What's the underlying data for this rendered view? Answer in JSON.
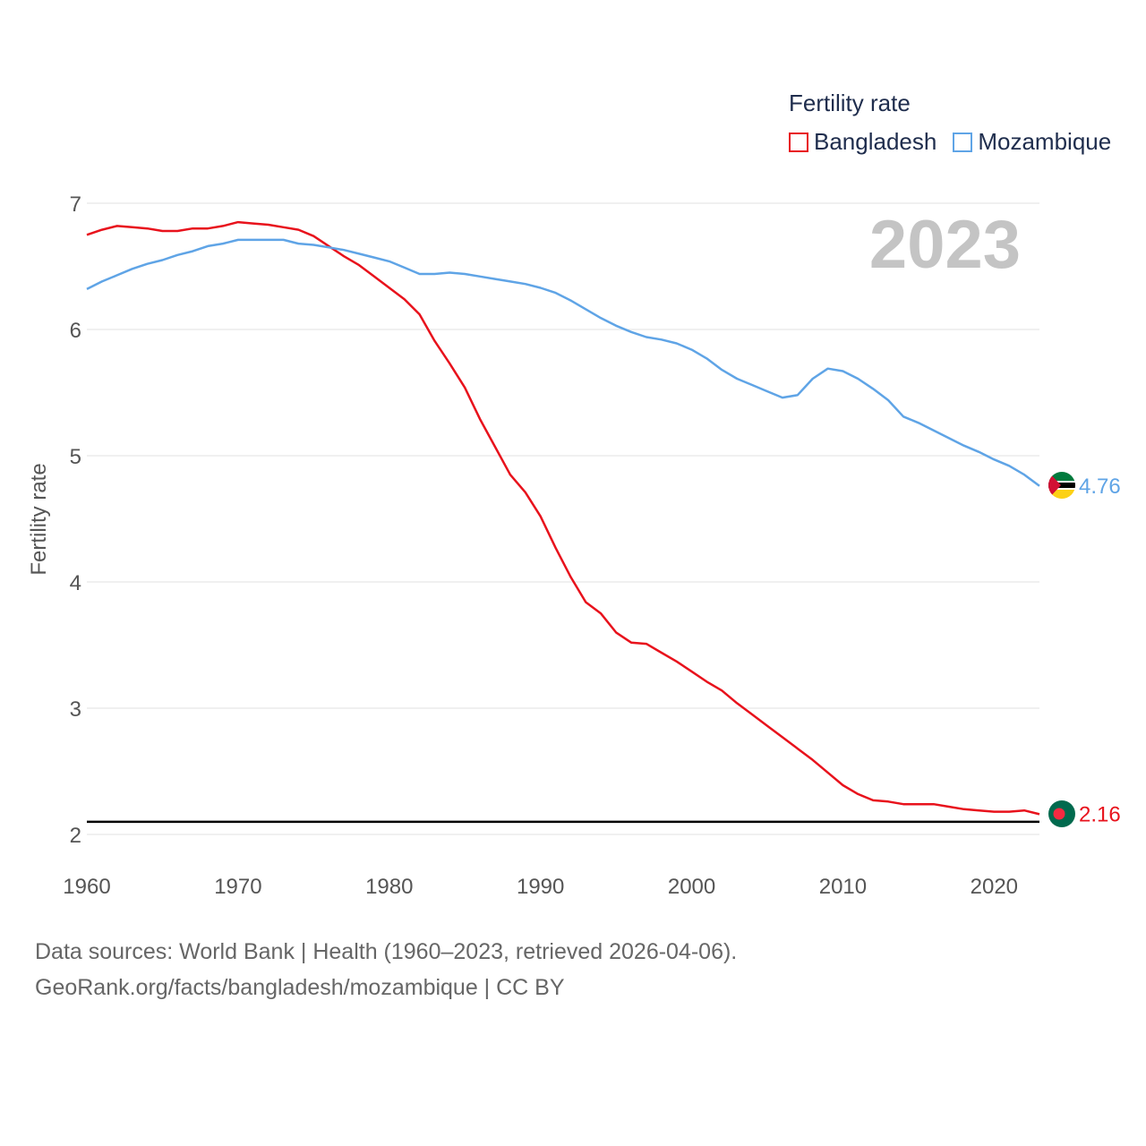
{
  "legend": {
    "title": "Fertility rate",
    "items": [
      {
        "label": "Bangladesh",
        "color": "#e8121c"
      },
      {
        "label": "Mozambique",
        "color": "#5fa4e6"
      }
    ]
  },
  "year_label": "2023",
  "footer": {
    "line1": "Data sources: World Bank | Health (1960–2023, retrieved 2026-04-06).",
    "line2": "GeoRank.org/facts/bangladesh/mozambique | CC BY"
  },
  "chart_data": {
    "type": "line",
    "title": "Fertility rate",
    "xlabel": "",
    "ylabel": "Fertility rate",
    "xlim": [
      1960,
      2023
    ],
    "ylim": [
      2,
      7
    ],
    "x_ticks": [
      1960,
      1970,
      1980,
      1990,
      2000,
      2010,
      2020
    ],
    "y_ticks": [
      2,
      3,
      4,
      5,
      6,
      7
    ],
    "reference_line": 2.1,
    "grid": true,
    "legend_position": "top-right",
    "x": [
      1960,
      1961,
      1962,
      1963,
      1964,
      1965,
      1966,
      1967,
      1968,
      1969,
      1970,
      1971,
      1972,
      1973,
      1974,
      1975,
      1976,
      1977,
      1978,
      1979,
      1980,
      1981,
      1982,
      1983,
      1984,
      1985,
      1986,
      1987,
      1988,
      1989,
      1990,
      1991,
      1992,
      1993,
      1994,
      1995,
      1996,
      1997,
      1998,
      1999,
      2000,
      2001,
      2002,
      2003,
      2004,
      2005,
      2006,
      2007,
      2008,
      2009,
      2010,
      2011,
      2012,
      2013,
      2014,
      2015,
      2016,
      2017,
      2018,
      2019,
      2020,
      2021,
      2022,
      2023
    ],
    "series": [
      {
        "name": "Bangladesh",
        "color": "#e8121c",
        "end_label": "2.16",
        "values": [
          6.75,
          6.79,
          6.82,
          6.81,
          6.8,
          6.78,
          6.78,
          6.8,
          6.8,
          6.82,
          6.85,
          6.84,
          6.83,
          6.81,
          6.79,
          6.74,
          6.66,
          6.58,
          6.51,
          6.42,
          6.33,
          6.24,
          6.12,
          5.91,
          5.73,
          5.54,
          5.29,
          5.07,
          4.85,
          4.71,
          4.52,
          4.27,
          4.04,
          3.84,
          3.75,
          3.6,
          3.52,
          3.51,
          3.44,
          3.37,
          3.29,
          3.21,
          3.14,
          3.04,
          2.95,
          2.86,
          2.77,
          2.68,
          2.59,
          2.49,
          2.39,
          2.32,
          2.27,
          2.26,
          2.24,
          2.24,
          2.24,
          2.22,
          2.2,
          2.19,
          2.18,
          2.18,
          2.19,
          2.16
        ]
      },
      {
        "name": "Mozambique",
        "color": "#5fa4e6",
        "end_label": "4.76",
        "values": [
          6.32,
          6.38,
          6.43,
          6.48,
          6.52,
          6.55,
          6.59,
          6.62,
          6.66,
          6.68,
          6.71,
          6.71,
          6.71,
          6.71,
          6.68,
          6.67,
          6.65,
          6.63,
          6.6,
          6.57,
          6.54,
          6.49,
          6.44,
          6.44,
          6.45,
          6.44,
          6.42,
          6.4,
          6.38,
          6.36,
          6.33,
          6.29,
          6.23,
          6.16,
          6.09,
          6.03,
          5.98,
          5.94,
          5.92,
          5.89,
          5.84,
          5.77,
          5.68,
          5.61,
          5.56,
          5.51,
          5.46,
          5.48,
          5.61,
          5.69,
          5.67,
          5.61,
          5.53,
          5.44,
          5.31,
          5.26,
          5.2,
          5.14,
          5.08,
          5.03,
          4.97,
          4.92,
          4.85,
          4.76
        ]
      }
    ]
  }
}
